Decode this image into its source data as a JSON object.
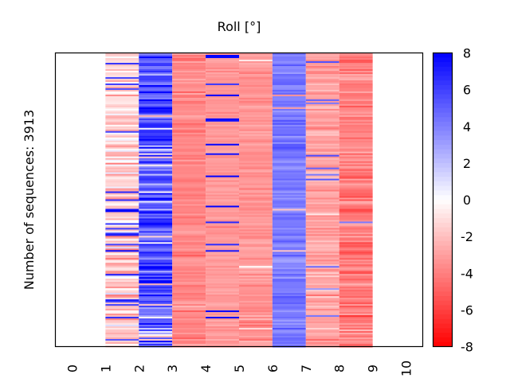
{
  "chart_data": {
    "type": "heatmap",
    "title": "Roll [°]",
    "xlabel": "",
    "ylabel": "Number of sequences: 3913",
    "n_sequences": 3913,
    "xlim": [
      -0.5,
      10.5
    ],
    "x_ticks": [
      "0",
      "1",
      "2",
      "3",
      "4",
      "5",
      "6",
      "7",
      "8",
      "9",
      "10"
    ],
    "grid": false,
    "colormap": "bwr (red=negative, white=0, blue=positive)",
    "colors": {
      "negative": "#ff0000",
      "zero": "#ffffff",
      "positive": "#0000ff"
    },
    "color_range": [
      -8,
      8
    ],
    "colorbar_ticks": [
      "8",
      "6",
      "4",
      "2",
      "0",
      "-2",
      "-4",
      "-6",
      "-8"
    ],
    "colorbar_tick_values": [
      8,
      6,
      4,
      2,
      0,
      -2,
      -4,
      -6,
      -8
    ],
    "colorbar_placement": "right",
    "columns": [
      {
        "x_start": 1,
        "x_end": 2,
        "typical_value": -1.5,
        "spread": 1.2,
        "outlier_prob": 0.12,
        "outlier_value": 6.5
      },
      {
        "x_start": 2,
        "x_end": 3,
        "typical_value": 5.5,
        "spread": 1.5,
        "outlier_prob": 0.08,
        "outlier_value": -1.0
      },
      {
        "x_start": 3,
        "x_end": 4,
        "typical_value": -3.8,
        "spread": 0.5,
        "outlier_prob": 0.003,
        "outlier_value": 2.5
      },
      {
        "x_start": 4,
        "x_end": 5,
        "typical_value": -3.2,
        "spread": 0.3,
        "outlier_prob": 0.06,
        "outlier_value": 8.0
      },
      {
        "x_start": 5,
        "x_end": 6,
        "typical_value": -3.3,
        "spread": 0.45,
        "outlier_prob": 0.01,
        "outlier_value": -1.0
      },
      {
        "x_start": 6,
        "x_end": 7,
        "typical_value": 4.2,
        "spread": 0.6,
        "outlier_prob": 0.03,
        "outlier_value": -2.5
      },
      {
        "x_start": 7,
        "x_end": 8,
        "typical_value": -2.8,
        "spread": 0.6,
        "outlier_prob": 0.07,
        "outlier_value": 5.0
      },
      {
        "x_start": 8,
        "x_end": 9,
        "typical_value": -4.0,
        "spread": 0.8,
        "outlier_prob": 0.01,
        "outlier_value": 5.0
      }
    ]
  }
}
